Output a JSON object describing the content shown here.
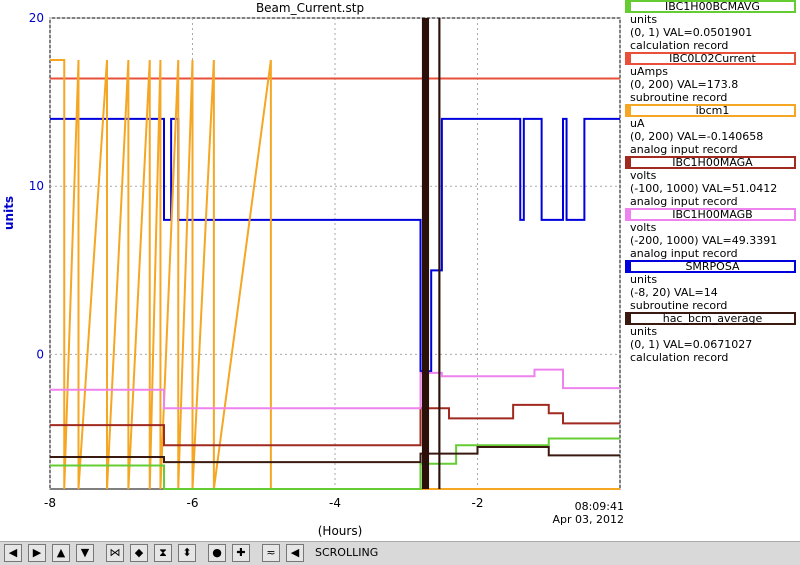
{
  "title": "Beam_Current.stp",
  "y_axis_label": "units",
  "x_axis_label": "(Hours)",
  "timestamp_time": "08:09:41",
  "timestamp_date": "Apr 03, 2012",
  "toolbar": {
    "status": "SCROLLING",
    "buttons": [
      "arrow-left-icon",
      "arrow-right-icon",
      "arrow-up-icon",
      "arrow-down-icon",
      "zoom-in-x-icon",
      "zoom-out-x-icon",
      "zoom-in-y-icon",
      "zoom-out-y-icon",
      "center-icon",
      "plus-icon",
      "autoscale-icon",
      "undo-icon"
    ]
  },
  "legend": [
    {
      "name": "IBC1H00BCMAVG",
      "color": "#66cc33",
      "units": "units",
      "range": "(0, 1) VAL=0.0501901",
      "type": "calculation record"
    },
    {
      "name": "IBC0L02Current",
      "color": "#e8503a",
      "units": "uAmps",
      "range": "(0, 200) VAL=173.8",
      "type": "subroutine record"
    },
    {
      "name": "ibcm1",
      "color": "#f5a623",
      "units": "uA",
      "range": "(0, 200) VAL=-0.140658",
      "type": "analog input record"
    },
    {
      "name": "IBC1H00MAGA",
      "color": "#a02a20",
      "units": "volts",
      "range": "(-100, 1000) VAL=51.0412",
      "type": "analog input record"
    },
    {
      "name": "IBC1H00MAGB",
      "color": "#ee82ee",
      "units": "volts",
      "range": "(-200, 1000) VAL=49.3391",
      "type": "analog input record"
    },
    {
      "name": "SMRPOSA",
      "color": "#0000dd",
      "units": "units",
      "range": "(-8, 20) VAL=14",
      "type": "subroutine record"
    },
    {
      "name": "hac_bcm_average",
      "color": "#3a1a10",
      "units": "units",
      "range": "(0, 1) VAL=0.0671027",
      "type": "calculation record"
    }
  ],
  "chart_data": {
    "type": "line",
    "xlim": [
      -8,
      0
    ],
    "ylim": [
      -8,
      20
    ],
    "x_ticks": [
      -8,
      -6,
      -4,
      -2
    ],
    "y_ticks": [
      0,
      10,
      20
    ],
    "grid": true,
    "series": [
      {
        "name": "SMRPOSA",
        "color": "#0000dd",
        "x": [
          -8,
          -6.4,
          -6.4,
          -6.3,
          -6.3,
          -6.2,
          -6.2,
          -2.8,
          -2.8,
          -2.65,
          -2.65,
          -2.5,
          -2.5,
          -1.4,
          -1.4,
          -1.35,
          -1.35,
          -1.1,
          -1.1,
          -0.8,
          -0.8,
          -0.75,
          -0.75,
          -0.5,
          -0.5,
          0
        ],
        "y": [
          14,
          14,
          8,
          8,
          14,
          14,
          8,
          8,
          -1,
          -1,
          5,
          5,
          14,
          14,
          8,
          8,
          14,
          14,
          8,
          8,
          14,
          14,
          8,
          8,
          14,
          14
        ]
      },
      {
        "name": "IBC0L02Current",
        "color": "#e8503a",
        "x": [
          -8,
          0
        ],
        "y": [
          16.4,
          16.4
        ]
      },
      {
        "name": "ibcm1",
        "color": "#f5a623",
        "x": [
          -8,
          -7.8,
          -7.8,
          -7.6,
          -7.6,
          -7.2,
          -7.2,
          -6.9,
          -6.9,
          -6.6,
          -6.6,
          -6.45,
          -6.45,
          -6.2,
          -6.2,
          -6.0,
          -6.0,
          -5.7,
          -5.7,
          -4.9,
          -4.9,
          0
        ],
        "y": [
          17.5,
          17.5,
          -8,
          17.5,
          -8,
          17.5,
          -8,
          17.5,
          -8,
          17.5,
          -8,
          17.5,
          -8,
          17.5,
          -8,
          17.5,
          -8,
          17.5,
          -8,
          17.5,
          -8,
          -8
        ]
      },
      {
        "name": "IBC1H00MAGA",
        "color": "#a02a20",
        "x": [
          -8,
          -6.4,
          -6.4,
          -2.8,
          -2.8,
          -2.4,
          -2.4,
          -1.5,
          -1.5,
          -1.0,
          -1.0,
          -0.8,
          -0.8,
          0
        ],
        "y": [
          -4.2,
          -4.2,
          -5.4,
          -5.4,
          -3.2,
          -3.2,
          -3.8,
          -3.8,
          -3.0,
          -3.0,
          -3.5,
          -3.5,
          -4.1,
          -4.1
        ]
      },
      {
        "name": "IBC1H00MAGB",
        "color": "#ee82ee",
        "x": [
          -8,
          -6.4,
          -6.4,
          -2.8,
          -2.8,
          -2.5,
          -2.5,
          -1.2,
          -1.2,
          -0.8,
          -0.8,
          0
        ],
        "y": [
          -2.1,
          -2.1,
          -3.2,
          -3.2,
          -1.1,
          -1.1,
          -1.3,
          -1.3,
          -0.9,
          -0.9,
          -2.0,
          -2.0
        ]
      },
      {
        "name": "IBC1H00BCMAVG",
        "color": "#66cc33",
        "x": [
          -8,
          -6.4,
          -6.4,
          -2.8,
          -2.8,
          -2.3,
          -2.3,
          -1.0,
          -1.0,
          0
        ],
        "y": [
          -6.6,
          -6.6,
          -8,
          -8,
          -6.5,
          -6.5,
          -5.4,
          -5.4,
          -5.0,
          -5.0
        ]
      },
      {
        "name": "hac_bcm_average",
        "color": "#3a1a10",
        "x": [
          -8,
          -6.4,
          -6.4,
          -2.8,
          -2.8,
          -2.0,
          -2.0,
          -1.0,
          -1.0,
          0
        ],
        "y": [
          -6.1,
          -6.1,
          -6.4,
          -6.4,
          -5.9,
          -5.9,
          -5.5,
          -5.5,
          -6.0,
          -6.0
        ]
      }
    ]
  }
}
